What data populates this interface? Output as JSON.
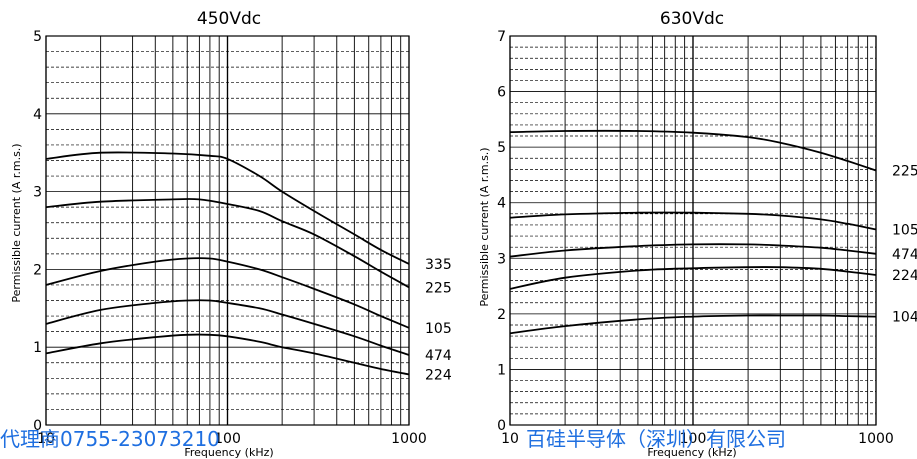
{
  "colors": {
    "grid": "#000000",
    "curve": "#000000",
    "watermark": "#1f6fe0"
  },
  "watermark": {
    "left": "代理商0755-23073210",
    "right": "百硅半导体（深圳）有限公司"
  },
  "chart_data": [
    {
      "type": "line",
      "title": "450Vdc",
      "xlabel": "Frequency (kHz)",
      "ylabel": "Permissible current (A r.m.s.)",
      "xscale": "log",
      "xlim": [
        10,
        1000
      ],
      "ylim": [
        0,
        5
      ],
      "x_tick_labels": [
        "10",
        "100",
        "1000"
      ],
      "y_ticks": [
        0,
        1,
        2,
        3,
        4,
        5
      ],
      "grid": true,
      "series": [
        {
          "name": "335",
          "x": [
            10,
            20,
            50,
            80,
            100,
            150,
            200,
            300,
            500,
            700,
            1000
          ],
          "y": [
            3.42,
            3.5,
            3.49,
            3.46,
            3.42,
            3.2,
            3.0,
            2.75,
            2.45,
            2.25,
            2.07
          ]
        },
        {
          "name": "225",
          "x": [
            10,
            20,
            50,
            70,
            100,
            150,
            200,
            300,
            500,
            700,
            1000
          ],
          "y": [
            2.8,
            2.87,
            2.9,
            2.9,
            2.84,
            2.75,
            2.62,
            2.45,
            2.17,
            1.97,
            1.77
          ]
        },
        {
          "name": "105",
          "x": [
            10,
            20,
            40,
            60,
            80,
            100,
            150,
            200,
            300,
            500,
            700,
            1000
          ],
          "y": [
            1.8,
            1.98,
            2.1,
            2.14,
            2.14,
            2.1,
            2.0,
            1.9,
            1.75,
            1.55,
            1.4,
            1.25
          ]
        },
        {
          "name": "474",
          "x": [
            10,
            20,
            40,
            60,
            80,
            100,
            150,
            200,
            300,
            500,
            700,
            1000
          ],
          "y": [
            1.3,
            1.48,
            1.57,
            1.6,
            1.6,
            1.57,
            1.5,
            1.42,
            1.3,
            1.14,
            1.02,
            0.9
          ]
        },
        {
          "name": "224",
          "x": [
            10,
            20,
            40,
            60,
            80,
            100,
            150,
            200,
            300,
            500,
            700,
            1000
          ],
          "y": [
            0.92,
            1.05,
            1.13,
            1.16,
            1.16,
            1.14,
            1.07,
            1.0,
            0.92,
            0.8,
            0.72,
            0.65
          ]
        }
      ]
    },
    {
      "type": "line",
      "title": "630Vdc",
      "xlabel": "Frequency (kHz)",
      "ylabel": "Permissible current (A r.m.s.)",
      "xscale": "log",
      "xlim": [
        10,
        1000
      ],
      "ylim": [
        0,
        7
      ],
      "x_tick_labels": [
        "10",
        "100",
        "1000"
      ],
      "y_ticks": [
        0,
        1,
        2,
        3,
        4,
        5,
        6,
        7
      ],
      "grid": true,
      "series": [
        {
          "name": "225",
          "x": [
            10,
            20,
            50,
            100,
            200,
            300,
            500,
            700,
            1000
          ],
          "y": [
            5.27,
            5.29,
            5.29,
            5.26,
            5.18,
            5.08,
            4.9,
            4.75,
            4.58
          ]
        },
        {
          "name": "105",
          "x": [
            10,
            20,
            50,
            100,
            200,
            300,
            500,
            700,
            1000
          ],
          "y": [
            3.73,
            3.79,
            3.82,
            3.82,
            3.8,
            3.77,
            3.7,
            3.62,
            3.52
          ]
        },
        {
          "name": "474",
          "x": [
            10,
            20,
            50,
            100,
            200,
            300,
            500,
            700,
            1000
          ],
          "y": [
            3.03,
            3.14,
            3.22,
            3.25,
            3.25,
            3.23,
            3.19,
            3.14,
            3.08
          ]
        },
        {
          "name": "224",
          "x": [
            10,
            20,
            50,
            100,
            200,
            300,
            500,
            700,
            1000
          ],
          "y": [
            2.45,
            2.65,
            2.78,
            2.82,
            2.84,
            2.84,
            2.81,
            2.76,
            2.7
          ]
        },
        {
          "name": "104",
          "x": [
            10,
            20,
            50,
            100,
            200,
            300,
            500,
            700,
            1000
          ],
          "y": [
            1.65,
            1.78,
            1.9,
            1.95,
            1.97,
            1.97,
            1.97,
            1.96,
            1.95
          ]
        }
      ]
    }
  ]
}
